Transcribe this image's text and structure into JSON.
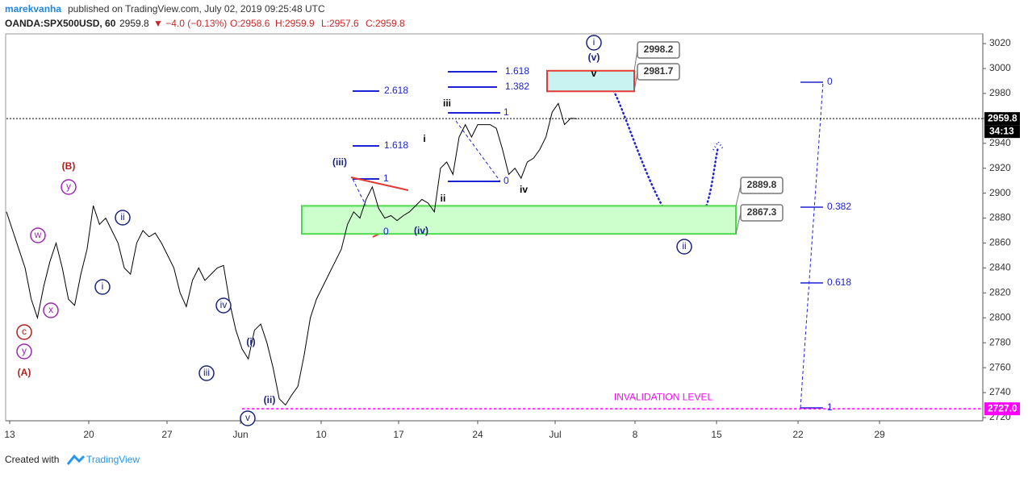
{
  "header": {
    "publisher": "marekvanha",
    "published": "published on TradingView.com, July 02, 2019 09:25:48 UTC",
    "symbol": "OANDA:SPX500USD, 60",
    "last": "2959.8",
    "change": "▼ −4.0 (−0.13%)",
    "ohlc": [
      "O:2958.6",
      "H:2959.9",
      "L:2957.6",
      "C:2959.8"
    ]
  },
  "chart_data": {
    "type": "line",
    "color": "#000000",
    "values": [
      2885,
      2870,
      2855,
      2840,
      2815,
      2800,
      2825,
      2845,
      2860,
      2840,
      2815,
      2810,
      2835,
      2855,
      2890,
      2875,
      2880,
      2870,
      2860,
      2840,
      2835,
      2860,
      2870,
      2865,
      2868,
      2860,
      2850,
      2840,
      2820,
      2809,
      2830,
      2840,
      2830,
      2835,
      2840,
      2842,
      2812,
      2790,
      2775,
      2767,
      2790,
      2795,
      2780,
      2760,
      2735,
      2730,
      2738,
      2745,
      2770,
      2800,
      2815,
      2825,
      2835,
      2845,
      2855,
      2875,
      2885,
      2880,
      2895,
      2905,
      2888,
      2880,
      2882,
      2878,
      2882,
      2885,
      2890,
      2895,
      2892,
      2885,
      2920,
      2925,
      2915,
      2945,
      2955,
      2945,
      2955,
      2955,
      2955,
      2952,
      2935,
      2915,
      2920,
      2912,
      2925,
      2928,
      2935,
      2945,
      2965,
      2972,
      2955,
      2960,
      2959.8
    ],
    "ylim": [
      2717.4,
      3027.8
    ],
    "yticks": [
      2720,
      2740,
      2760,
      2780,
      2800,
      2820,
      2840,
      2860,
      2880,
      2900,
      2920,
      2940,
      2960,
      2980,
      3000,
      3020
    ],
    "time_labels": [
      "13",
      "20",
      "27",
      "Jun",
      "10",
      "17",
      "24",
      "Jul",
      "8",
      "15",
      "22",
      "29"
    ],
    "last_price": {
      "value": 2959.8,
      "label": "2959.8"
    },
    "countdown": "34:13",
    "zones": [
      {
        "low": 2981.7,
        "high": 2998.2,
        "fill": "#c8f3f0",
        "stroke": "#e53935"
      },
      {
        "low": 2867.3,
        "high": 2889.8,
        "fill": "#ccffcc",
        "stroke": "#4cd94c"
      }
    ],
    "invalidation": {
      "value": 2727.0,
      "label": "2727.0",
      "text": "INVALIDATION LEVEL",
      "color": "#ff00ff"
    },
    "wave_labels": [
      {
        "text": "(B)",
        "color": "#b71c1c",
        "circle": false
      },
      {
        "text": "y",
        "color": "#9c27b0",
        "circle": true
      },
      {
        "text": "w",
        "color": "#9c27b0",
        "circle": true
      },
      {
        "text": "x",
        "color": "#9c27b0",
        "circle": true
      },
      {
        "text": "c",
        "color": "#b71c1c",
        "circle": true
      },
      {
        "text": "y",
        "color": "#9c27b0",
        "circle": true
      },
      {
        "text": "(A)",
        "color": "#b71c1c",
        "circle": false
      },
      {
        "text": "ii",
        "color": "#1a237e",
        "circle": true
      },
      {
        "text": "i",
        "color": "#1a237e",
        "circle": true
      },
      {
        "text": "iv",
        "color": "#1a237e",
        "circle": true
      },
      {
        "text": "iii",
        "color": "#1a237e",
        "circle": true
      },
      {
        "text": "(i)",
        "color": "#1a237e",
        "circle": false
      },
      {
        "text": "(ii)",
        "color": "#1a237e",
        "circle": false
      },
      {
        "text": "v",
        "color": "#1a237e",
        "circle": true
      },
      {
        "text": "(iii)",
        "color": "#1a237e",
        "circle": false
      },
      {
        "text": "(iv)",
        "color": "#1a237e",
        "circle": false
      },
      {
        "text": "i",
        "color": "#000000",
        "circle": false
      },
      {
        "text": "ii",
        "color": "#000000",
        "circle": false
      },
      {
        "text": "iii",
        "color": "#000000",
        "circle": false
      },
      {
        "text": "iv",
        "color": "#000000",
        "circle": false
      },
      {
        "text": "i",
        "color": "#1a237e",
        "circle": true
      },
      {
        "text": "(v)",
        "color": "#1a237e",
        "circle": false
      },
      {
        "text": "v",
        "color": "#000000",
        "circle": false
      },
      {
        "text": "ii",
        "color": "#1a237e",
        "circle": true
      }
    ],
    "fib_labels": [
      "1.618",
      "1.382",
      "2.618",
      "1",
      "1.618",
      "1",
      "0",
      "0",
      "0",
      "0.382",
      "0.618",
      "1"
    ]
  },
  "footer": {
    "created": "Created with",
    "brand": "TradingView"
  }
}
